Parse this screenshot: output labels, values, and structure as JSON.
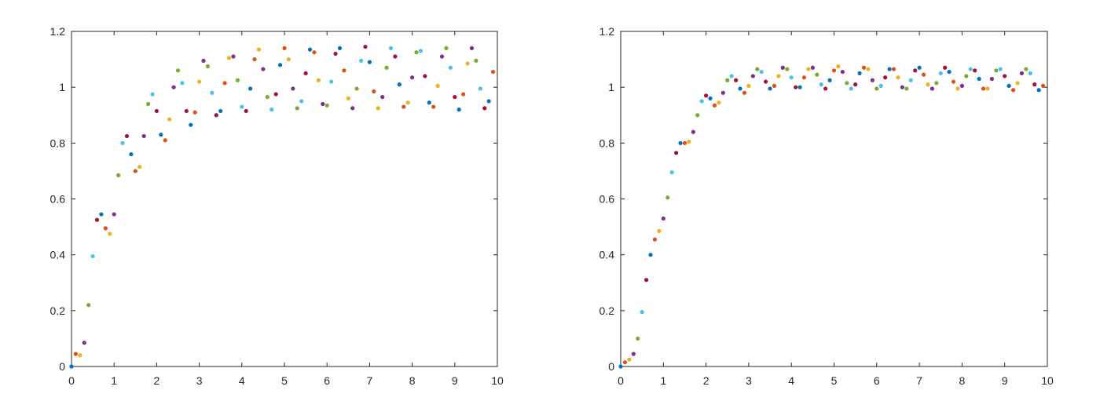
{
  "chart_data": [
    {
      "type": "scatter",
      "x": [
        0,
        0.1,
        0.2,
        0.3,
        0.4,
        0.5,
        0.6,
        0.7,
        0.8,
        0.9,
        1,
        1.1,
        1.2,
        1.3,
        1.4,
        1.5,
        1.6,
        1.7,
        1.8,
        1.9,
        2,
        2.1,
        2.2,
        2.3,
        2.4,
        2.5,
        2.6,
        2.7,
        2.8,
        2.9,
        3,
        3.1,
        3.2,
        3.3,
        3.4,
        3.5,
        3.6,
        3.7,
        3.8,
        3.9,
        4,
        4.1,
        4.2,
        4.3,
        4.4,
        4.5,
        4.6,
        4.7,
        4.8,
        4.9,
        5,
        5.1,
        5.2,
        5.3,
        5.4,
        5.5,
        5.6,
        5.7,
        5.8,
        5.9,
        6,
        6.1,
        6.2,
        6.3,
        6.4,
        6.5,
        6.6,
        6.7,
        6.8,
        6.9,
        7,
        7.1,
        7.2,
        7.3,
        7.4,
        7.5,
        7.6,
        7.7,
        7.8,
        7.9,
        8,
        8.1,
        8.2,
        8.3,
        8.4,
        8.5,
        8.6,
        8.7,
        8.8,
        8.9,
        9,
        9.1,
        9.2,
        9.3,
        9.4,
        9.5,
        9.6,
        9.7,
        9.8,
        9.9
      ],
      "values": [
        0,
        0.045,
        0.04,
        0.085,
        0.22,
        0.395,
        0.525,
        0.545,
        0.495,
        0.475,
        0.545,
        0.685,
        0.8,
        0.825,
        0.76,
        0.7,
        0.715,
        0.825,
        0.94,
        0.975,
        0.915,
        0.83,
        0.81,
        0.885,
        1.0,
        1.06,
        1.015,
        0.915,
        0.865,
        0.91,
        1.02,
        1.095,
        1.075,
        0.98,
        0.9,
        0.915,
        1.015,
        1.105,
        1.11,
        1.025,
        0.93,
        0.915,
        0.995,
        1.1,
        1.135,
        1.065,
        0.965,
        0.92,
        0.975,
        1.08,
        1.14,
        1.1,
        0.995,
        0.925,
        0.95,
        1.05,
        1.135,
        1.125,
        1.025,
        0.94,
        0.935,
        1.02,
        1.12,
        1.14,
        1.06,
        0.96,
        0.925,
        0.995,
        1.095,
        1.145,
        1.09,
        0.985,
        0.925,
        0.965,
        1.07,
        1.14,
        1.11,
        1.01,
        0.93,
        0.945,
        1.035,
        1.125,
        1.13,
        1.04,
        0.945,
        0.93,
        1.005,
        1.11,
        1.14,
        1.07,
        0.965,
        0.92,
        0.975,
        1.085,
        1.14,
        1.095,
        0.995,
        0.925,
        0.95,
        1.055
      ],
      "colors": [
        "#0072BD",
        "#D95319",
        "#EDB120",
        "#7E2F8E",
        "#77AC30",
        "#4DBEEE",
        "#A2142F"
      ],
      "xlim": [
        0,
        10
      ],
      "xticks": [
        0,
        1,
        2,
        3,
        4,
        5,
        6,
        7,
        8,
        9,
        10
      ],
      "ylim": [
        0,
        1.2
      ],
      "yticks": [
        0,
        0.2,
        0.4,
        0.6,
        0.8,
        1,
        1.2
      ]
    },
    {
      "type": "scatter",
      "x": [
        0,
        0.1,
        0.2,
        0.3,
        0.4,
        0.5,
        0.6,
        0.7,
        0.8,
        0.9,
        1,
        1.1,
        1.2,
        1.3,
        1.4,
        1.5,
        1.6,
        1.7,
        1.8,
        1.9,
        2,
        2.1,
        2.2,
        2.3,
        2.4,
        2.5,
        2.6,
        2.7,
        2.8,
        2.9,
        3,
        3.1,
        3.2,
        3.3,
        3.4,
        3.5,
        3.6,
        3.7,
        3.8,
        3.9,
        4,
        4.1,
        4.2,
        4.3,
        4.4,
        4.5,
        4.6,
        4.7,
        4.8,
        4.9,
        5,
        5.1,
        5.2,
        5.3,
        5.4,
        5.5,
        5.6,
        5.7,
        5.8,
        5.9,
        6,
        6.1,
        6.2,
        6.3,
        6.4,
        6.5,
        6.6,
        6.7,
        6.8,
        6.9,
        7,
        7.1,
        7.2,
        7.3,
        7.4,
        7.5,
        7.6,
        7.7,
        7.8,
        7.9,
        8,
        8.1,
        8.2,
        8.3,
        8.4,
        8.5,
        8.6,
        8.7,
        8.8,
        8.9,
        9,
        9.1,
        9.2,
        9.3,
        9.4,
        9.5,
        9.6,
        9.7,
        9.8,
        9.9
      ],
      "values": [
        0,
        0.015,
        0.025,
        0.045,
        0.1,
        0.195,
        0.31,
        0.4,
        0.455,
        0.485,
        0.53,
        0.605,
        0.695,
        0.765,
        0.8,
        0.8,
        0.805,
        0.84,
        0.9,
        0.95,
        0.97,
        0.96,
        0.935,
        0.945,
        0.98,
        1.025,
        1.04,
        1.025,
        0.995,
        0.98,
        1.005,
        1.04,
        1.065,
        1.055,
        1.02,
        0.995,
        1.005,
        1.04,
        1.07,
        1.065,
        1.035,
        1.0,
        1.0,
        1.035,
        1.065,
        1.07,
        1.045,
        1.01,
        0.995,
        1.025,
        1.06,
        1.075,
        1.055,
        1.015,
        0.995,
        1.01,
        1.05,
        1.07,
        1.065,
        1.025,
        0.995,
        1.005,
        1.035,
        1.065,
        1.065,
        1.035,
        1.0,
        0.995,
        1.025,
        1.06,
        1.07,
        1.045,
        1.01,
        0.995,
        1.015,
        1.05,
        1.07,
        1.055,
        1.02,
        0.995,
        1.005,
        1.04,
        1.065,
        1.06,
        1.03,
        0.995,
        0.995,
        1.03,
        1.06,
        1.065,
        1.04,
        1.005,
        0.99,
        1.015,
        1.05,
        1.065,
        1.05,
        1.01,
        0.99,
        1.005
      ],
      "colors": [
        "#0072BD",
        "#D95319",
        "#EDB120",
        "#7E2F8E",
        "#77AC30",
        "#4DBEEE",
        "#A2142F"
      ],
      "xlim": [
        0,
        10
      ],
      "xticks": [
        0,
        1,
        2,
        3,
        4,
        5,
        6,
        7,
        8,
        9,
        10
      ],
      "ylim": [
        0,
        1.2
      ],
      "yticks": [
        0,
        0.2,
        0.4,
        0.6,
        0.8,
        1,
        1.2
      ]
    }
  ]
}
